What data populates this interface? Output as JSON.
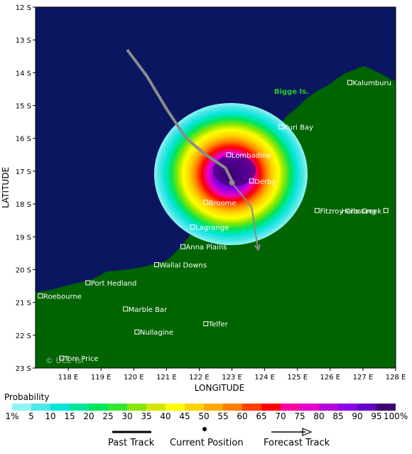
{
  "map": {
    "xlabel": "LONGITUDE",
    "ylabel": "LATITUDE",
    "lon_ticks": [
      "118 E",
      "119 E",
      "120 E",
      "121 E",
      "122 E",
      "123 E",
      "124 E",
      "125 E",
      "126 E",
      "127 E",
      "128 E"
    ],
    "lat_ticks": [
      "12 S",
      "13 S",
      "14 S",
      "15 S",
      "16 S",
      "17 S",
      "18 S",
      "19 S",
      "20 S",
      "21 S",
      "22 S",
      "23 S"
    ],
    "lon_range": [
      117,
      128
    ],
    "lat_range": [
      12,
      23
    ],
    "copyright": "© UCL Tsr",
    "colors": {
      "ocean": "#0a1660",
      "land": "#006400",
      "track": "#8c8c8c"
    },
    "places": [
      {
        "name": "Kalumburu",
        "lon": 126.6,
        "lat": 14.3,
        "marker": true
      },
      {
        "name": "Bigge Is.",
        "lon": 124.2,
        "lat": 14.55,
        "marker": false,
        "green": true
      },
      {
        "name": "Kuri Bay",
        "lon": 124.5,
        "lat": 15.65,
        "marker": true
      },
      {
        "name": "Lombadina",
        "lon": 122.9,
        "lat": 16.5,
        "marker": true
      },
      {
        "name": "Derby",
        "lon": 123.6,
        "lat": 17.3,
        "marker": true
      },
      {
        "name": "Broome",
        "lon": 122.2,
        "lat": 17.95,
        "marker": true
      },
      {
        "name": "Halls Creek",
        "lon": 127.7,
        "lat": 18.2,
        "marker": true,
        "label_left": true
      },
      {
        "name": "Fitzroy Crossing",
        "lon": 125.6,
        "lat": 18.2,
        "marker": true
      },
      {
        "name": "Lagrange",
        "lon": 121.8,
        "lat": 18.7,
        "marker": true
      },
      {
        "name": "Anna Plains",
        "lon": 121.5,
        "lat": 19.3,
        "marker": true
      },
      {
        "name": "Wallal Downs",
        "lon": 120.7,
        "lat": 19.85,
        "marker": true
      },
      {
        "name": "Port Hedland",
        "lon": 118.6,
        "lat": 20.4,
        "marker": true
      },
      {
        "name": "Roebourne",
        "lon": 117.15,
        "lat": 20.8,
        "marker": true
      },
      {
        "name": "Marble Bar",
        "lon": 119.75,
        "lat": 21.2,
        "marker": true
      },
      {
        "name": "Telfer",
        "lon": 122.2,
        "lat": 21.65,
        "marker": true
      },
      {
        "name": "Nullagine",
        "lon": 120.1,
        "lat": 21.9,
        "marker": true
      },
      {
        "name": "Tom Price",
        "lon": 117.8,
        "lat": 22.7,
        "marker": true
      }
    ],
    "past_track": [
      [
        119.8,
        13.3
      ],
      [
        120.4,
        14.1
      ],
      [
        121.0,
        15.1
      ],
      [
        121.6,
        16.0
      ],
      [
        122.2,
        16.5
      ],
      [
        122.8,
        16.9
      ],
      [
        123.0,
        17.3
      ]
    ],
    "current_position": [
      123.0,
      17.35
    ],
    "forecast_track": [
      [
        123.0,
        17.35
      ],
      [
        123.6,
        18.1
      ],
      [
        123.8,
        19.4
      ]
    ]
  },
  "legend": {
    "title": "Probability",
    "labels": [
      "1%",
      "5",
      "10",
      "15",
      "20",
      "25",
      "30",
      "35",
      "40",
      "45",
      "50",
      "55",
      "60",
      "65",
      "70",
      "75",
      "80",
      "85",
      "90",
      "95",
      "100%"
    ],
    "colors": [
      "#90f4f4",
      "#4ce7e7",
      "#00e5d7",
      "#00e59e",
      "#00e55a",
      "#33e633",
      "#88e600",
      "#d5e500",
      "#ffff00",
      "#ffd200",
      "#ffa800",
      "#ff7e00",
      "#ff4000",
      "#ff0000",
      "#ff00a0",
      "#e600c8",
      "#b400d7",
      "#8c00e6",
      "#6400c8",
      "#3c006e"
    ]
  },
  "key": {
    "past_track": "Past Track",
    "current_position": "Current Position",
    "forecast_track": "Forecast Track"
  }
}
